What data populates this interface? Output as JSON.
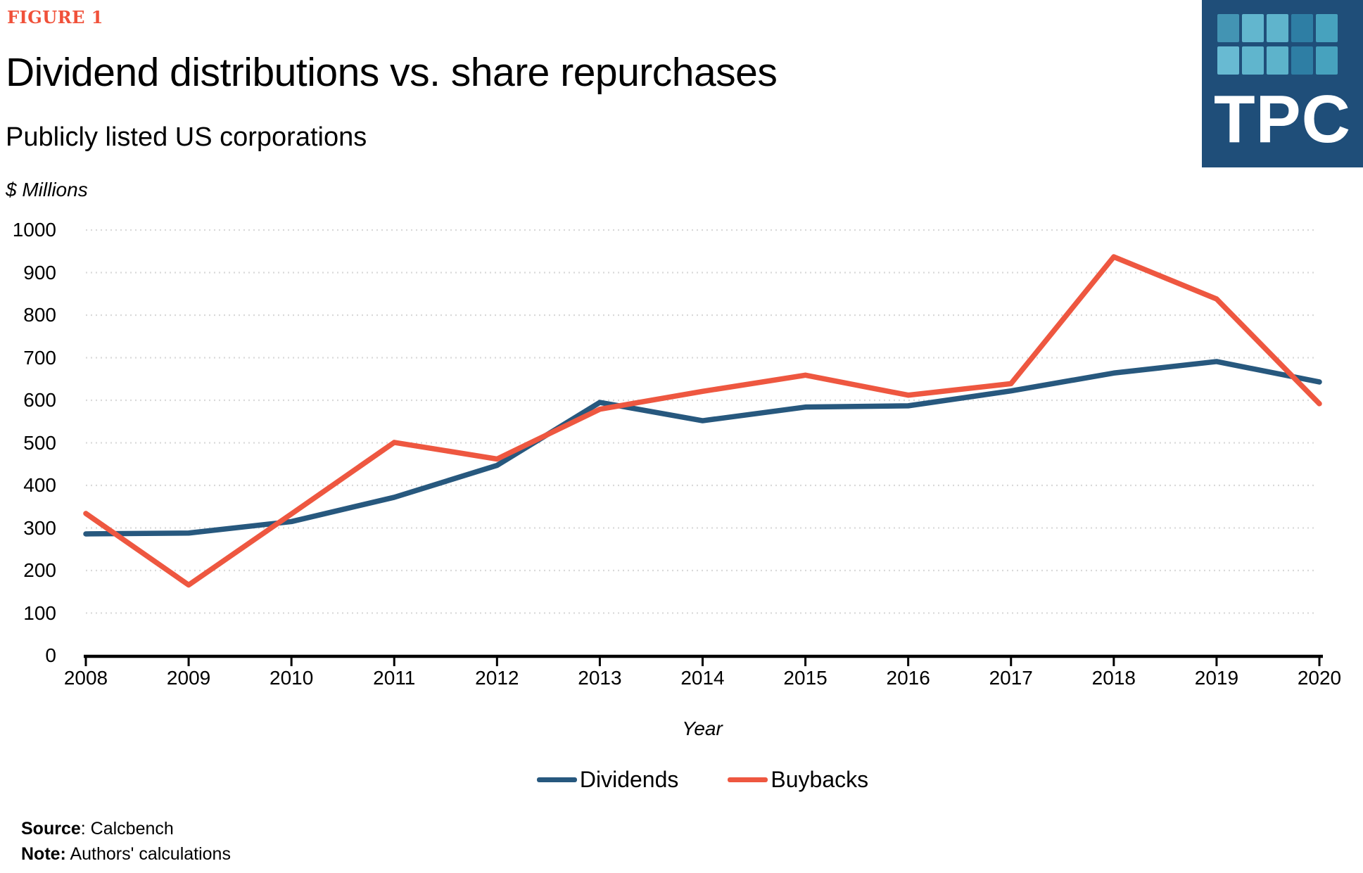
{
  "header": {
    "figure_label": "FIGURE 1",
    "figure_label_color": "#F0513A",
    "title": "Dividend distributions vs. share repurchases",
    "subtitle": "Publicly listed US corporations"
  },
  "logo": {
    "text": "TPC",
    "bg_color": "#1F4E79",
    "square_colors": [
      "#4394B3",
      "#62B6CE",
      "#5FB4CC",
      "#2E7EA4",
      "#47A2BE",
      "#68BAD2",
      "#60B5CD",
      "#5DB3CB",
      "#2E7EA4",
      "#47A2BE"
    ]
  },
  "chart_data": {
    "type": "line",
    "title": "Dividend distributions vs. share repurchases",
    "subtitle": "Publicly listed US corporations",
    "units_label": "$ Millions",
    "xlabel": "Year",
    "ylim": [
      0,
      1000
    ],
    "ytick_step": 100,
    "grid": "horizontal-dotted",
    "gridline_color": "#D9D9D9",
    "legend_position": "bottom",
    "categories": [
      2008,
      2009,
      2010,
      2011,
      2012,
      2013,
      2014,
      2015,
      2016,
      2017,
      2018,
      2019,
      2020
    ],
    "series": [
      {
        "name": "Dividends",
        "color": "#27587E",
        "values": [
          286,
          288,
          315,
          372,
          447,
          595,
          552,
          584,
          587,
          622,
          664,
          691,
          643
        ]
      },
      {
        "name": "Buybacks",
        "color": "#EE5740",
        "values": [
          334,
          166,
          333,
          501,
          462,
          579,
          621,
          659,
          612,
          639,
          937,
          838,
          592
        ]
      }
    ]
  },
  "footer": {
    "source_label": "Source",
    "source_text": ": Calcbench",
    "note_label": "Note:",
    "note_text": " Authors' calculations"
  }
}
